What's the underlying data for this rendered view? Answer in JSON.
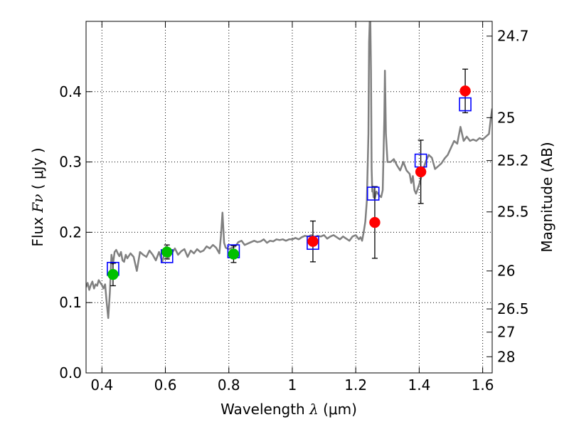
{
  "chart_data": {
    "type": "scatter",
    "xlabel_text": "Wavelength",
    "xlabel_symbol": "λ",
    "xlabel_unit": "(μm)",
    "ylabel_text": "Flux",
    "ylabel_symbol": "Fν",
    "ylabel_unit": "( μJy )",
    "y2label": "Magnitude (AB)",
    "xlim": [
      0.35,
      1.63
    ],
    "ylim": [
      0.0,
      0.5
    ],
    "grid": true,
    "xticks": [
      0.4,
      0.6,
      0.8,
      1.0,
      1.2,
      1.4,
      1.6
    ],
    "xtick_labels": [
      "0.4",
      "0.6",
      "0.8",
      "1",
      "1.2",
      "1.4",
      "1.6"
    ],
    "yticks": [
      0.0,
      0.1,
      0.2,
      0.3,
      0.4
    ],
    "ytick_labels": [
      "0.0",
      "0.1",
      "0.2",
      "0.3",
      "0.4"
    ],
    "y2ticks": [
      {
        "label": "24.7",
        "flux": 0.479
      },
      {
        "label": "25",
        "flux": 0.363
      },
      {
        "label": "25.2",
        "flux": 0.302
      },
      {
        "label": "25.5",
        "flux": 0.229
      },
      {
        "label": "26",
        "flux": 0.145
      },
      {
        "label": "26.5",
        "flux": 0.091
      },
      {
        "label": "27",
        "flux": 0.058
      },
      {
        "label": "28",
        "flux": 0.023
      }
    ],
    "spectrum": {
      "name": "model spectrum",
      "color": "#808080",
      "x": [
        0.35,
        0.355,
        0.36,
        0.365,
        0.37,
        0.375,
        0.38,
        0.385,
        0.39,
        0.395,
        0.4,
        0.405,
        0.41,
        0.415,
        0.42,
        0.425,
        0.43,
        0.435,
        0.44,
        0.445,
        0.45,
        0.455,
        0.46,
        0.465,
        0.47,
        0.475,
        0.48,
        0.49,
        0.5,
        0.51,
        0.52,
        0.53,
        0.54,
        0.55,
        0.56,
        0.57,
        0.58,
        0.59,
        0.6,
        0.61,
        0.62,
        0.63,
        0.64,
        0.65,
        0.66,
        0.67,
        0.68,
        0.69,
        0.7,
        0.71,
        0.72,
        0.73,
        0.74,
        0.75,
        0.76,
        0.77,
        0.775,
        0.78,
        0.785,
        0.79,
        0.8,
        0.81,
        0.82,
        0.83,
        0.84,
        0.85,
        0.86,
        0.87,
        0.88,
        0.89,
        0.9,
        0.91,
        0.92,
        0.93,
        0.94,
        0.95,
        0.96,
        0.97,
        0.98,
        0.99,
        1.0,
        1.01,
        1.02,
        1.03,
        1.04,
        1.05,
        1.06,
        1.07,
        1.08,
        1.09,
        1.1,
        1.11,
        1.12,
        1.13,
        1.14,
        1.15,
        1.16,
        1.17,
        1.18,
        1.19,
        1.2,
        1.21,
        1.215,
        1.22,
        1.225,
        1.23,
        1.235,
        1.24,
        1.242,
        1.244,
        1.246,
        1.248,
        1.25,
        1.252,
        1.254,
        1.256,
        1.26,
        1.265,
        1.27,
        1.275,
        1.28,
        1.285,
        1.29,
        1.292,
        1.295,
        1.3,
        1.31,
        1.32,
        1.33,
        1.34,
        1.35,
        1.36,
        1.37,
        1.375,
        1.38,
        1.385,
        1.39,
        1.4,
        1.41,
        1.42,
        1.43,
        1.44,
        1.45,
        1.46,
        1.47,
        1.48,
        1.49,
        1.5,
        1.51,
        1.52,
        1.53,
        1.54,
        1.55,
        1.56,
        1.57,
        1.58,
        1.59,
        1.6,
        1.61,
        1.615,
        1.62,
        1.625,
        1.63
      ],
      "y": [
        0.122,
        0.128,
        0.118,
        0.125,
        0.13,
        0.12,
        0.126,
        0.124,
        0.132,
        0.128,
        0.125,
        0.12,
        0.126,
        0.1,
        0.078,
        0.115,
        0.168,
        0.155,
        0.172,
        0.175,
        0.17,
        0.166,
        0.172,
        0.16,
        0.158,
        0.168,
        0.163,
        0.17,
        0.165,
        0.145,
        0.172,
        0.168,
        0.165,
        0.174,
        0.168,
        0.16,
        0.172,
        0.158,
        0.175,
        0.164,
        0.17,
        0.177,
        0.168,
        0.173,
        0.176,
        0.165,
        0.174,
        0.17,
        0.176,
        0.172,
        0.174,
        0.18,
        0.177,
        0.182,
        0.178,
        0.17,
        0.194,
        0.228,
        0.185,
        0.178,
        0.176,
        0.178,
        0.18,
        0.186,
        0.188,
        0.182,
        0.184,
        0.186,
        0.188,
        0.186,
        0.187,
        0.19,
        0.185,
        0.188,
        0.187,
        0.19,
        0.189,
        0.19,
        0.188,
        0.19,
        0.19,
        0.192,
        0.19,
        0.193,
        0.195,
        0.194,
        0.196,
        0.193,
        0.195,
        0.194,
        0.196,
        0.191,
        0.194,
        0.196,
        0.193,
        0.19,
        0.194,
        0.191,
        0.188,
        0.194,
        0.196,
        0.19,
        0.193,
        0.188,
        0.2,
        0.215,
        0.245,
        0.34,
        0.47,
        0.5,
        0.5,
        0.43,
        0.29,
        0.258,
        0.262,
        0.25,
        0.248,
        0.258,
        0.255,
        0.252,
        0.25,
        0.26,
        0.36,
        0.43,
        0.34,
        0.3,
        0.3,
        0.304,
        0.295,
        0.288,
        0.3,
        0.288,
        0.283,
        0.27,
        0.28,
        0.26,
        0.255,
        0.268,
        0.285,
        0.3,
        0.31,
        0.306,
        0.29,
        0.294,
        0.298,
        0.305,
        0.31,
        0.32,
        0.33,
        0.326,
        0.35,
        0.33,
        0.336,
        0.33,
        0.332,
        0.33,
        0.334,
        0.332,
        0.336,
        0.338,
        0.34,
        0.36,
        0.376
      ]
    },
    "series": [
      {
        "name": "blue open squares",
        "marker": "square-open",
        "color": "#0000ff",
        "x": [
          0.435,
          0.605,
          0.815,
          1.065,
          1.255,
          1.405,
          1.545
        ],
        "y": [
          0.148,
          0.166,
          0.173,
          0.185,
          0.255,
          0.302,
          0.382
        ]
      },
      {
        "name": "green circles",
        "marker": "circle",
        "color": "#00c000",
        "x": [
          0.435,
          0.605,
          0.815
        ],
        "y": [
          0.14,
          0.172,
          0.169
        ],
        "yerr": [
          0.016,
          0.01,
          0.012
        ]
      },
      {
        "name": "red circles",
        "marker": "circle",
        "color": "#ff0000",
        "x": [
          1.065,
          1.26,
          1.405,
          1.545
        ],
        "y": [
          0.187,
          0.214,
          0.286,
          0.401
        ],
        "yerr": [
          0.029,
          0.051,
          0.045,
          0.031
        ]
      }
    ]
  }
}
